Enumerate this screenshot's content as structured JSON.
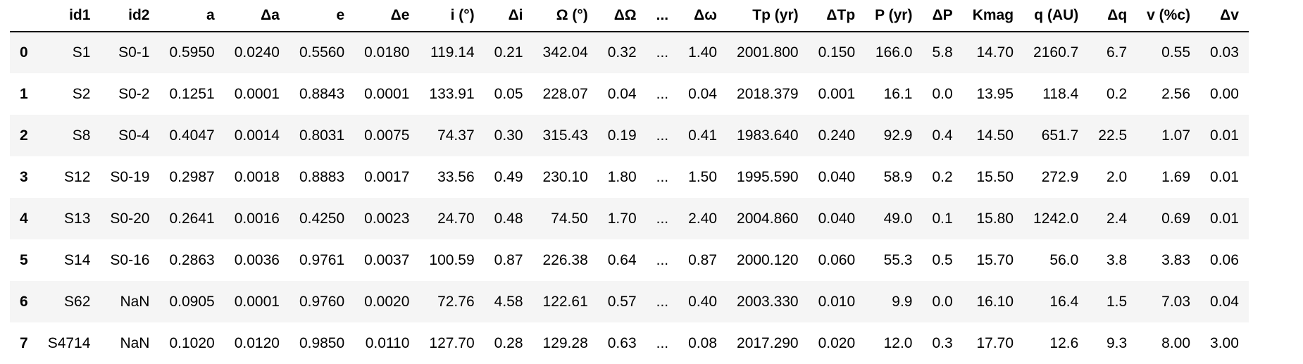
{
  "table": {
    "index_header": "",
    "columns": [
      "id1",
      "id2",
      "a",
      "Δa",
      "e",
      "Δe",
      "i (°)",
      "Δi",
      "Ω (°)",
      "ΔΩ",
      "...",
      "Δω",
      "Tp (yr)",
      "ΔTp",
      "P (yr)",
      "ΔP",
      "Kmag",
      "q (AU)",
      "Δq",
      "v (%c)",
      "Δv"
    ],
    "rows": [
      {
        "index": "0",
        "cells": [
          "S1",
          "S0-1",
          "0.5950",
          "0.0240",
          "0.5560",
          "0.0180",
          "119.14",
          "0.21",
          "342.04",
          "0.32",
          "...",
          "1.40",
          "2001.800",
          "0.150",
          "166.0",
          "5.8",
          "14.70",
          "2160.7",
          "6.7",
          "0.55",
          "0.03"
        ]
      },
      {
        "index": "1",
        "cells": [
          "S2",
          "S0-2",
          "0.1251",
          "0.0001",
          "0.8843",
          "0.0001",
          "133.91",
          "0.05",
          "228.07",
          "0.04",
          "...",
          "0.04",
          "2018.379",
          "0.001",
          "16.1",
          "0.0",
          "13.95",
          "118.4",
          "0.2",
          "2.56",
          "0.00"
        ]
      },
      {
        "index": "2",
        "cells": [
          "S8",
          "S0-4",
          "0.4047",
          "0.0014",
          "0.8031",
          "0.0075",
          "74.37",
          "0.30",
          "315.43",
          "0.19",
          "...",
          "0.41",
          "1983.640",
          "0.240",
          "92.9",
          "0.4",
          "14.50",
          "651.7",
          "22.5",
          "1.07",
          "0.01"
        ]
      },
      {
        "index": "3",
        "cells": [
          "S12",
          "S0-19",
          "0.2987",
          "0.0018",
          "0.8883",
          "0.0017",
          "33.56",
          "0.49",
          "230.10",
          "1.80",
          "...",
          "1.50",
          "1995.590",
          "0.040",
          "58.9",
          "0.2",
          "15.50",
          "272.9",
          "2.0",
          "1.69",
          "0.01"
        ]
      },
      {
        "index": "4",
        "cells": [
          "S13",
          "S0-20",
          "0.2641",
          "0.0016",
          "0.4250",
          "0.0023",
          "24.70",
          "0.48",
          "74.50",
          "1.70",
          "...",
          "2.40",
          "2004.860",
          "0.040",
          "49.0",
          "0.1",
          "15.80",
          "1242.0",
          "2.4",
          "0.69",
          "0.01"
        ]
      },
      {
        "index": "5",
        "cells": [
          "S14",
          "S0-16",
          "0.2863",
          "0.0036",
          "0.9761",
          "0.0037",
          "100.59",
          "0.87",
          "226.38",
          "0.64",
          "...",
          "0.87",
          "2000.120",
          "0.060",
          "55.3",
          "0.5",
          "15.70",
          "56.0",
          "3.8",
          "3.83",
          "0.06"
        ]
      },
      {
        "index": "6",
        "cells": [
          "S62",
          "NaN",
          "0.0905",
          "0.0001",
          "0.9760",
          "0.0020",
          "72.76",
          "4.58",
          "122.61",
          "0.57",
          "...",
          "0.40",
          "2003.330",
          "0.010",
          "9.9",
          "0.0",
          "16.10",
          "16.4",
          "1.5",
          "7.03",
          "0.04"
        ]
      },
      {
        "index": "7",
        "cells": [
          "S4714",
          "NaN",
          "0.1020",
          "0.0120",
          "0.9850",
          "0.0110",
          "127.70",
          "0.28",
          "129.28",
          "0.63",
          "...",
          "0.08",
          "2017.290",
          "0.020",
          "12.0",
          "0.3",
          "17.70",
          "12.6",
          "9.3",
          "8.00",
          "3.00"
        ]
      }
    ]
  }
}
